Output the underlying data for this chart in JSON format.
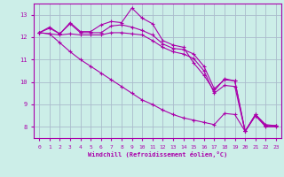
{
  "background_color": "#cceee8",
  "grid_color": "#aabbcc",
  "line_color": "#aa00aa",
  "xlabel": "Windchill (Refroidissement éolien,°C)",
  "ylim": [
    7.5,
    13.5
  ],
  "xlim": [
    -0.5,
    23.5
  ],
  "yticks": [
    8,
    9,
    10,
    11,
    12,
    13
  ],
  "xticks": [
    0,
    1,
    2,
    3,
    4,
    5,
    6,
    7,
    8,
    9,
    10,
    11,
    12,
    13,
    14,
    15,
    16,
    17,
    18,
    19,
    20,
    21,
    22,
    23
  ],
  "series": [
    [
      12.2,
      12.45,
      12.15,
      12.65,
      12.25,
      12.25,
      12.55,
      12.7,
      12.65,
      13.3,
      12.85,
      12.6,
      11.85,
      11.65,
      11.55,
      10.85,
      10.3,
      9.6,
      10.15,
      10.05,
      7.8,
      8.55,
      8.05,
      8.05
    ],
    [
      12.2,
      12.4,
      12.15,
      12.6,
      12.2,
      12.2,
      12.2,
      12.5,
      12.55,
      12.45,
      12.3,
      12.1,
      11.7,
      11.5,
      11.45,
      11.25,
      10.7,
      9.7,
      10.1,
      10.05,
      7.8,
      8.5,
      8.05,
      8.05
    ],
    [
      12.2,
      12.15,
      12.1,
      12.15,
      12.1,
      12.1,
      12.1,
      12.2,
      12.2,
      12.15,
      12.1,
      11.85,
      11.55,
      11.35,
      11.25,
      11.05,
      10.5,
      9.5,
      9.85,
      9.8,
      7.8,
      8.5,
      8.0,
      8.0
    ],
    [
      12.2,
      12.15,
      11.75,
      11.35,
      11.0,
      10.7,
      10.4,
      10.1,
      9.8,
      9.5,
      9.2,
      9.0,
      8.75,
      8.55,
      8.4,
      8.3,
      8.2,
      8.1,
      8.6,
      8.55,
      7.8,
      8.55,
      8.1,
      8.05
    ]
  ]
}
